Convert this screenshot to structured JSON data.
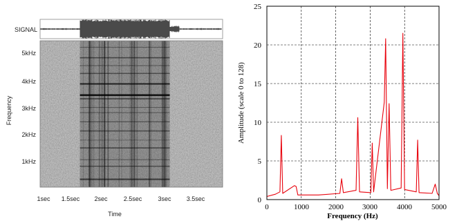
{
  "charts": [
    {
      "kind": "spectrogram",
      "signal_label": "SIGNAL",
      "xlabel": "Time",
      "ylabel": "Frequency",
      "x_ticks": [
        "1sec",
        "1.5sec",
        "2sec",
        "2.5sec",
        "3sec",
        "3.5sec"
      ],
      "y_ticks": [
        "1kHz",
        "2kHz",
        "3kHz",
        "4kHz",
        "5kHz"
      ]
    },
    {
      "kind": "spectrum",
      "xlabel": "Frequency (Hz)",
      "ylabel": "Amplitude (scale 0 to 128)",
      "x_ticks": [
        "0",
        "1000",
        "2000",
        "3000",
        "4000",
        "5000"
      ],
      "y_ticks": [
        "0",
        "5",
        "10",
        "15",
        "20",
        "25"
      ]
    }
  ],
  "chart_data": [
    {
      "type": "heatmap",
      "signal_label": "SIGNAL",
      "xlabel": "Time",
      "ylabel": "Frequency",
      "xlim": [
        0.75,
        4.1
      ],
      "ylim": [
        0,
        5600
      ],
      "x_ticks": [
        1.0,
        1.5,
        2.0,
        2.5,
        3.0,
        3.5
      ],
      "y_ticks": [
        1000,
        2000,
        3000,
        4000,
        5000
      ],
      "active_interval_sec": [
        1.48,
        3.13
      ]
    },
    {
      "type": "line",
      "xlabel": "Frequency (Hz)",
      "ylabel": "Amplitude (scale 0 to 128)",
      "xlim": [
        0,
        5000
      ],
      "ylim": [
        0,
        25
      ],
      "grid": true,
      "series": [
        {
          "color": "#e8000b",
          "x": [
            0,
            250,
            380,
            420,
            460,
            800,
            850,
            900,
            1500,
            2120,
            2170,
            2220,
            2590,
            2640,
            2690,
            3020,
            3060,
            3100,
            3410,
            3450,
            3500,
            3550,
            3600,
            3900,
            3950,
            4000,
            4340,
            4380,
            4420,
            4800,
            4890,
            4950,
            5000
          ],
          "y": [
            0.4,
            0.7,
            1.0,
            8.3,
            0.8,
            1.8,
            1.7,
            0.6,
            0.6,
            0.8,
            2.7,
            0.9,
            1.2,
            10.6,
            1.0,
            0.9,
            7.3,
            1.0,
            12.6,
            20.8,
            1.4,
            12.4,
            1.2,
            1.5,
            21.5,
            1.3,
            1.0,
            7.7,
            0.9,
            0.8,
            2.0,
            0.8,
            0.5
          ]
        }
      ]
    }
  ]
}
